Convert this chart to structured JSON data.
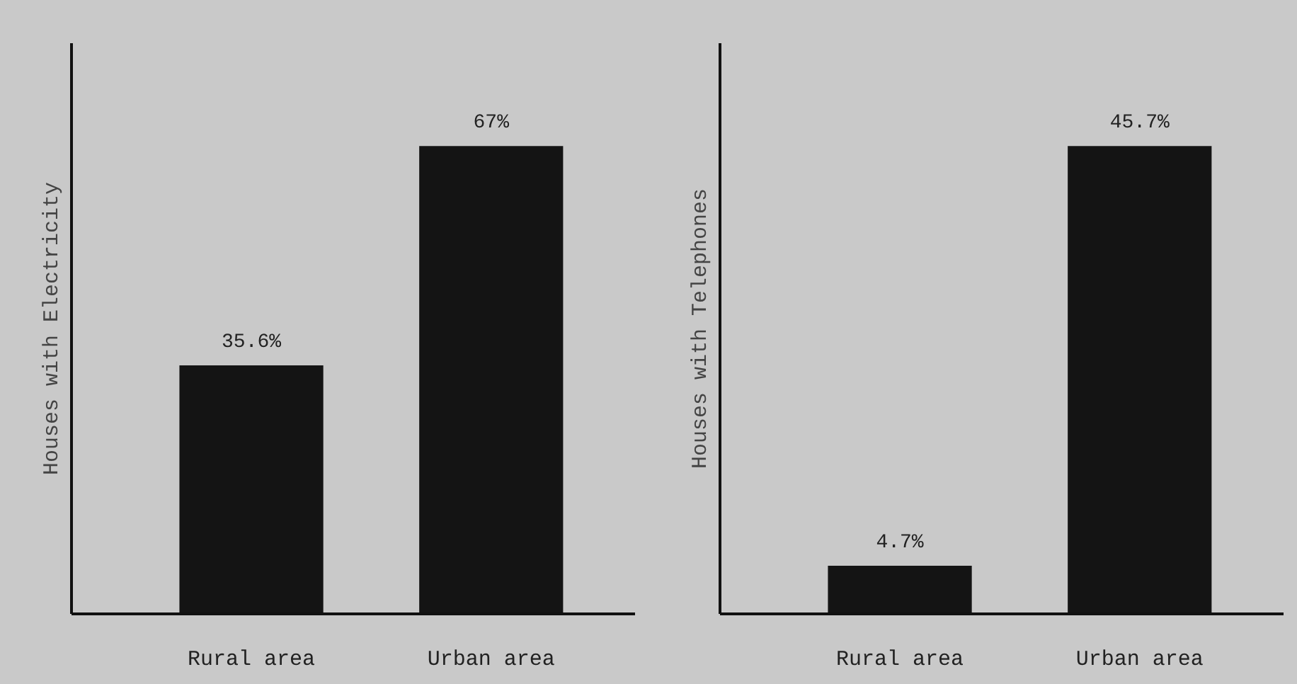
{
  "chart_data": [
    {
      "type": "bar",
      "ylabel": "Houses with Electricity",
      "categories": [
        "Rural area",
        "Urban area"
      ],
      "values": [
        35.6,
        67
      ],
      "value_labels": [
        "35.6%",
        "67%"
      ],
      "color": "#141414",
      "tick_labels": "x",
      "grid": false
    },
    {
      "type": "bar",
      "ylabel": "Houses with Telephones",
      "categories": [
        "Rural area",
        "Urban area"
      ],
      "values": [
        4.7,
        45.7
      ],
      "value_labels": [
        "4.7%",
        "45.7%"
      ],
      "color": "#141414",
      "tick_labels": "x",
      "grid": false
    }
  ]
}
